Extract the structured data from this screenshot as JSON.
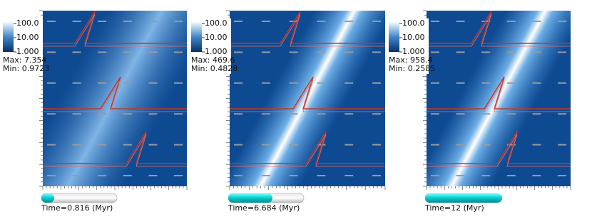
{
  "panels": [
    {
      "colorbar": [
        "100.0",
        "10.00",
        "1.000"
      ],
      "max": "Max: 7.354",
      "min": "Min: 0.9723",
      "time": "Time=0.816 (Myr)"
    },
    {
      "colorbar": [
        "100.0",
        "10.00",
        "1.000"
      ],
      "max": "Max: 469.6",
      "min": "Min: 0.4828",
      "time": "Time=6.684 (Myr)"
    },
    {
      "colorbar": [
        "100.0",
        "10.00",
        "1.000"
      ],
      "max": "Max: 958.4",
      "min": "Min: 0.2585",
      "time": "Time=12 (Myr)"
    }
  ]
}
